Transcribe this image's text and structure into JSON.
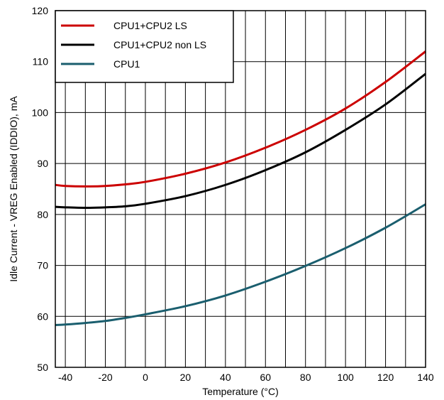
{
  "chart_data": {
    "type": "line",
    "xlabel": "Temperature (°C)",
    "ylabel": "Idle Current - VREG Enabled (IDDIO), mA",
    "xlim": [
      -45,
      140
    ],
    "ylim": [
      50,
      120
    ],
    "xticks": [
      -40,
      -20,
      0,
      20,
      40,
      60,
      80,
      100,
      120,
      140
    ],
    "yticks": [
      50,
      60,
      70,
      80,
      90,
      100,
      110,
      120
    ],
    "xgrid": [
      -40,
      -30,
      -20,
      -10,
      0,
      10,
      20,
      30,
      40,
      50,
      60,
      70,
      80,
      90,
      100,
      110,
      120,
      130,
      140
    ],
    "grid": true,
    "legend_position": "top-left",
    "series": [
      {
        "name": "CPU1+CPU2 LS",
        "color": "#cc0000",
        "x": [
          -45,
          -40,
          -30,
          -20,
          -10,
          0,
          20,
          40,
          60,
          80,
          100,
          120,
          140
        ],
        "y": [
          85.8,
          85.6,
          85.5,
          85.6,
          85.9,
          86.4,
          88.0,
          90.2,
          93.1,
          96.6,
          100.8,
          106.0,
          112.0
        ]
      },
      {
        "name": "CPU1+CPU2 non LS",
        "color": "#000000",
        "x": [
          -45,
          -40,
          -30,
          -20,
          -10,
          0,
          20,
          40,
          60,
          80,
          100,
          120,
          140
        ],
        "y": [
          81.5,
          81.4,
          81.3,
          81.4,
          81.6,
          82.1,
          83.6,
          85.8,
          88.7,
          92.2,
          96.6,
          101.6,
          107.6
        ]
      },
      {
        "name": "CPU1",
        "color": "#1a5e6e",
        "x": [
          -45,
          -40,
          -30,
          -20,
          -10,
          0,
          20,
          40,
          60,
          80,
          100,
          120,
          140
        ],
        "y": [
          58.3,
          58.4,
          58.7,
          59.1,
          59.7,
          60.4,
          62.0,
          64.1,
          66.8,
          69.9,
          73.4,
          77.4,
          82.0
        ]
      }
    ]
  }
}
